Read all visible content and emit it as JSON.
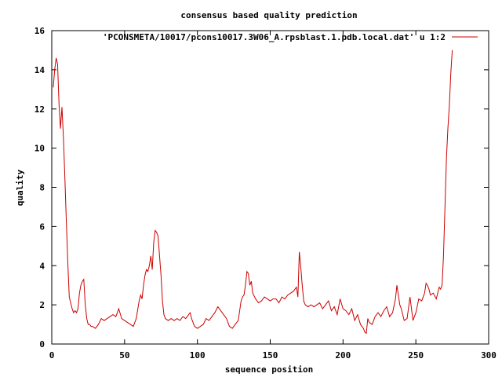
{
  "chart_data": {
    "type": "line",
    "title": "consensus based quality prediction",
    "xlabel": "sequence position",
    "ylabel": "quality",
    "xlim": [
      0,
      300
    ],
    "ylim": [
      0,
      16
    ],
    "xticks": [
      0,
      50,
      100,
      150,
      200,
      250,
      300
    ],
    "yticks": [
      0,
      2,
      4,
      6,
      8,
      10,
      12,
      14,
      16
    ],
    "grid": false,
    "legend_position": "top-right",
    "series": [
      {
        "name": "'PCONSMETA/10017/pcons10017.3W06_A.rpsblast.1.pdb.local.dat' u 1:2",
        "color": "#cc0000",
        "x": [
          1,
          2,
          3,
          4,
          5,
          6,
          7,
          8,
          9,
          10,
          11,
          12,
          13,
          14,
          15,
          16,
          17,
          18,
          19,
          20,
          21,
          22,
          23,
          24,
          25,
          26,
          27,
          28,
          29,
          30,
          32,
          34,
          36,
          38,
          40,
          42,
          44,
          45,
          46,
          48,
          50,
          52,
          54,
          55,
          56,
          58,
          60,
          61,
          62,
          63,
          64,
          65,
          66,
          67,
          68,
          69,
          70,
          71,
          72,
          73,
          74,
          75,
          76,
          77,
          78,
          80,
          82,
          84,
          86,
          88,
          90,
          92,
          94,
          95,
          96,
          98,
          100,
          102,
          104,
          106,
          108,
          110,
          112,
          114,
          116,
          118,
          120,
          122,
          124,
          126,
          128,
          130,
          131,
          132,
          133,
          134,
          135,
          136,
          137,
          138,
          140,
          142,
          144,
          146,
          148,
          150,
          152,
          154,
          156,
          158,
          160,
          162,
          164,
          166,
          168,
          169,
          170,
          171,
          172,
          173,
          174,
          176,
          178,
          180,
          182,
          184,
          186,
          188,
          190,
          192,
          194,
          196,
          198,
          200,
          202,
          204,
          206,
          208,
          210,
          212,
          214,
          215,
          216,
          217,
          218,
          220,
          222,
          224,
          226,
          228,
          230,
          232,
          234,
          236,
          237,
          238,
          239,
          240,
          242,
          244,
          246,
          247,
          248,
          250,
          252,
          254,
          256,
          257,
          258,
          259,
          260,
          262,
          264,
          266,
          267,
          268,
          269,
          270,
          271,
          272,
          273,
          274,
          275
        ],
        "y": [
          13.1,
          14.0,
          14.6,
          14.3,
          12.2,
          11.0,
          12.1,
          10.5,
          8.5,
          6.2,
          4.2,
          2.4,
          2.1,
          1.8,
          1.6,
          1.7,
          1.6,
          1.8,
          2.6,
          3.0,
          3.2,
          3.3,
          2.0,
          1.3,
          1.0,
          1.0,
          0.9,
          0.9,
          0.85,
          0.8,
          1.0,
          1.3,
          1.2,
          1.3,
          1.4,
          1.5,
          1.4,
          1.6,
          1.8,
          1.3,
          1.2,
          1.1,
          1.0,
          0.95,
          0.9,
          1.3,
          2.2,
          2.5,
          2.3,
          3.0,
          3.5,
          3.8,
          3.7,
          4.0,
          4.5,
          3.8,
          5.2,
          5.8,
          5.7,
          5.5,
          4.5,
          3.5,
          2.2,
          1.5,
          1.3,
          1.2,
          1.3,
          1.2,
          1.3,
          1.2,
          1.4,
          1.3,
          1.5,
          1.6,
          1.3,
          0.9,
          0.8,
          0.9,
          1.0,
          1.3,
          1.2,
          1.4,
          1.6,
          1.9,
          1.7,
          1.5,
          1.3,
          0.9,
          0.8,
          1.0,
          1.2,
          2.2,
          2.4,
          2.5,
          3.0,
          3.7,
          3.6,
          3.0,
          3.2,
          2.6,
          2.3,
          2.1,
          2.2,
          2.4,
          2.3,
          2.2,
          2.3,
          2.3,
          2.1,
          2.4,
          2.3,
          2.5,
          2.6,
          2.7,
          2.9,
          2.4,
          4.7,
          3.9,
          3.0,
          2.2,
          2.0,
          1.9,
          2.0,
          1.9,
          2.0,
          2.1,
          1.8,
          2.0,
          2.2,
          1.7,
          1.9,
          1.5,
          2.3,
          1.8,
          1.7,
          1.5,
          1.8,
          1.2,
          1.5,
          1.0,
          0.8,
          0.6,
          0.55,
          1.3,
          1.1,
          1.0,
          1.4,
          1.6,
          1.4,
          1.7,
          1.9,
          1.4,
          1.6,
          2.3,
          3.0,
          2.5,
          2.0,
          1.8,
          1.2,
          1.3,
          2.4,
          1.8,
          1.2,
          1.6,
          2.3,
          2.2,
          2.6,
          3.1,
          3.0,
          2.8,
          2.5,
          2.6,
          2.3,
          2.9,
          2.8,
          3.0,
          4.5,
          7.0,
          9.5,
          11.0,
          12.2,
          13.8,
          15.0
        ]
      }
    ]
  }
}
